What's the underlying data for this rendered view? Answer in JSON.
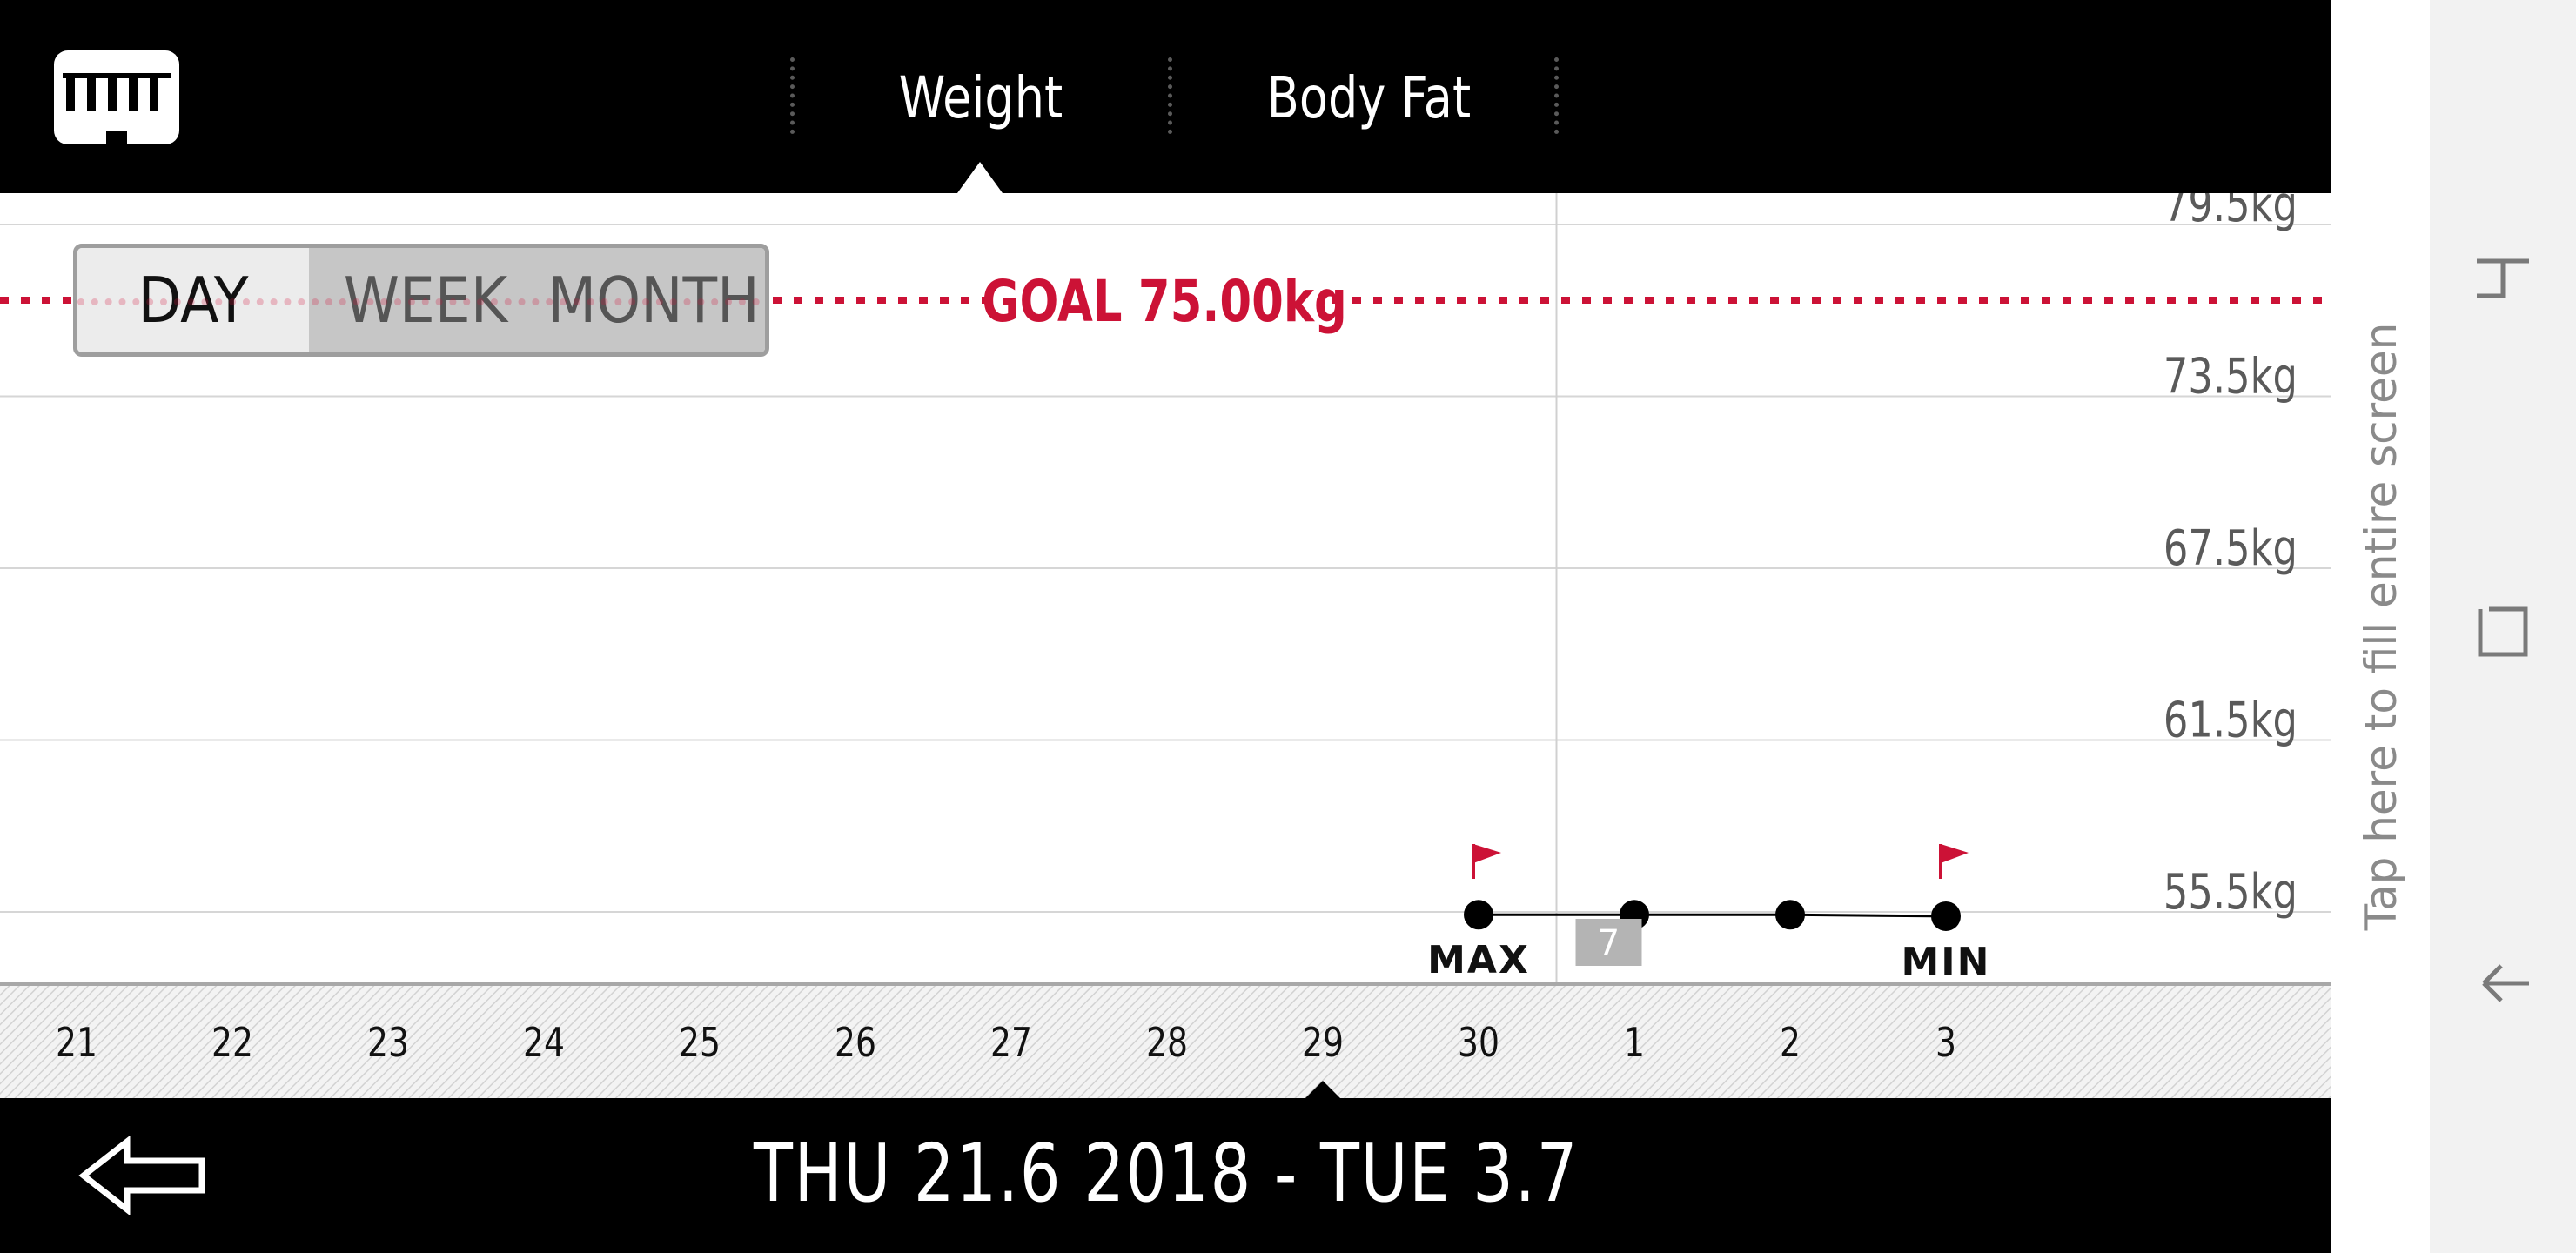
{
  "header": {
    "tabs": [
      {
        "label": "Weight",
        "active": true
      },
      {
        "label": "Body Fat",
        "active": false
      }
    ],
    "logo_icon": "scale-logo-icon"
  },
  "period_toggle": {
    "options": [
      "DAY",
      "WEEK",
      "MONTH"
    ],
    "selected": "DAY"
  },
  "chart_data": {
    "type": "line",
    "goal": {
      "label": "GOAL 75.00kg",
      "value": 75.0
    },
    "y_ticks": [
      "79.5kg",
      "73.5kg",
      "67.5kg",
      "61.5kg",
      "55.5kg"
    ],
    "y_tick_values": [
      79.5,
      73.5,
      67.5,
      61.5,
      55.5
    ],
    "x_ticks": [
      "21",
      "22",
      "23",
      "24",
      "25",
      "26",
      "27",
      "28",
      "29",
      "30",
      "1",
      "2",
      "3"
    ],
    "series": [
      {
        "x": [
          "30",
          "1",
          "2",
          "3"
        ],
        "y": [
          55.4,
          55.4,
          55.4,
          55.35
        ]
      }
    ],
    "markers": {
      "max": "MAX",
      "min": "MIN",
      "max_x": "30",
      "min_x": "3"
    },
    "month_badge": "7",
    "colors": {
      "goal": "#cc1236",
      "line": "#000000"
    }
  },
  "footer": {
    "date_range": "THU 21.6 2018 - TUE 3.7 2018",
    "back_icon": "back-arrow-icon"
  },
  "side_panel": {
    "fill_screen_text": "Tap here to fill entire screen"
  },
  "navbar": {
    "icons": [
      "recent-apps-icon",
      "home-icon",
      "back-icon"
    ]
  }
}
